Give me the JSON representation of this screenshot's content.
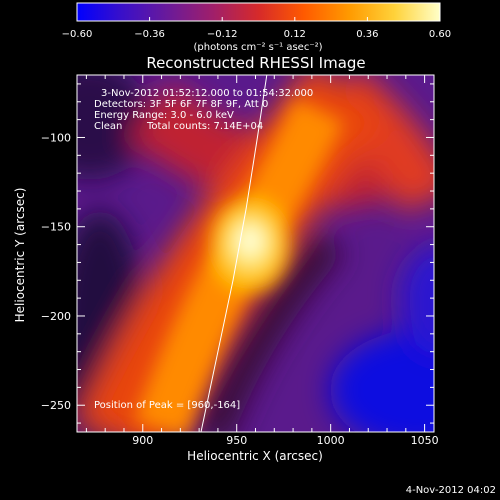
{
  "chart_data": {
    "type": "heatmap",
    "title": "Reconstructed RHESSI Image",
    "xlabel": "Heliocentric X (arcsec)",
    "ylabel": "Heliocentric Y (arcsec)",
    "xlim": [
      865,
      1055
    ],
    "ylim": [
      -265,
      -65
    ],
    "xticks": [
      900,
      950,
      1000,
      1050
    ],
    "yticks": [
      -100,
      -150,
      -200,
      -250
    ],
    "x_tick_labels": [
      "900",
      "950",
      "1000",
      "1050"
    ],
    "y_tick_labels": [
      "−100",
      "−150",
      "−200",
      "−250"
    ],
    "colorbar": {
      "range": [
        -0.6,
        0.6
      ],
      "tick_labels": [
        "−0.60",
        "−0.36",
        "−0.12",
        "0.12",
        "0.36",
        "0.60"
      ],
      "ticks": [
        -0.6,
        -0.36,
        -0.12,
        0.12,
        0.36,
        0.6
      ],
      "label": "(photons cm⁻² s⁻¹ asec⁻²)",
      "colormap": [
        "#0000ff",
        "#3a10c8",
        "#6a1a9a",
        "#a01f6a",
        "#d62a2a",
        "#ff5a00",
        "#ff9a00",
        "#ffd23a",
        "#ffffc8"
      ]
    },
    "peak": [
      960,
      -164
    ],
    "limb_curve": [
      [
        931,
        -265
      ],
      [
        940,
        -220
      ],
      [
        948,
        -180
      ],
      [
        955,
        -140
      ],
      [
        961,
        -100
      ],
      [
        966,
        -65
      ]
    ],
    "annotations": [
      "3-Nov-2012 01:52:12.000 to 01:54:32.000",
      "Detectors: 3F 5F 6F 7F 8F 9F, Att 0",
      "Energy Range: 3.0 - 6.0 keV",
      "Clean",
      "Total counts: 7.14E+04",
      "Position of Peak = [960,-164]"
    ],
    "timestamp": "4-Nov-2012 04:02"
  }
}
